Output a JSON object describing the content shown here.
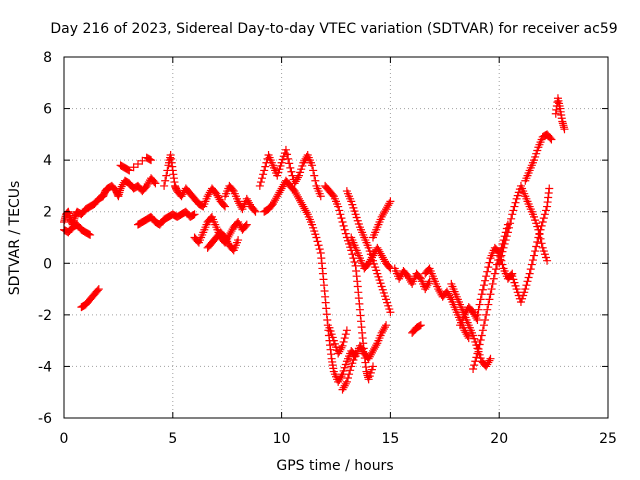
{
  "chart_data": {
    "type": "scatter",
    "title": "Day 216 of 2023, Sidereal Day-to-day VTEC variation (SDTVAR) for receiver ac59",
    "xlabel": "GPS time / hours",
    "ylabel": "SDTVAR / TECUs",
    "xlim": [
      0,
      25
    ],
    "ylim": [
      -6,
      8
    ],
    "xticks": [
      "0",
      "5",
      "10",
      "15",
      "20",
      "25"
    ],
    "yticks": [
      "-6",
      "-4",
      "-2",
      "0",
      "2",
      "4",
      "6",
      "8"
    ],
    "grid": true,
    "marker": "plus",
    "color": "#ff0000",
    "series": [
      {
        "points": [
          [
            0.0,
            1.6
          ],
          [
            0.1,
            1.9
          ],
          [
            0.2,
            2.0
          ],
          [
            0.3,
            1.7
          ],
          [
            0.4,
            1.5
          ],
          [
            0.5,
            1.8
          ],
          [
            0.6,
            2.0
          ],
          [
            0.8,
            1.9
          ],
          [
            1.0,
            2.1
          ],
          [
            1.2,
            2.2
          ],
          [
            1.4,
            2.3
          ],
          [
            1.6,
            2.5
          ],
          [
            1.8,
            2.6
          ],
          [
            1.9,
            2.8
          ],
          [
            2.0,
            2.9
          ],
          [
            2.2,
            3.0
          ],
          [
            2.4,
            2.8
          ],
          [
            2.5,
            2.6
          ],
          [
            2.6,
            2.9
          ],
          [
            2.8,
            3.2
          ],
          [
            3.0,
            3.1
          ],
          [
            3.2,
            2.9
          ],
          [
            3.4,
            3.0
          ],
          [
            3.6,
            2.8
          ],
          [
            3.8,
            3.0
          ],
          [
            4.0,
            3.3
          ],
          [
            4.2,
            3.1
          ]
        ]
      },
      {
        "points": [
          [
            0.0,
            1.3
          ],
          [
            0.2,
            1.2
          ],
          [
            0.4,
            1.4
          ],
          [
            0.6,
            1.5
          ],
          [
            0.8,
            1.3
          ],
          [
            1.0,
            1.2
          ],
          [
            1.2,
            1.1
          ]
        ]
      },
      {
        "points": [
          [
            0.8,
            -1.7
          ],
          [
            1.0,
            -1.6
          ],
          [
            1.2,
            -1.4
          ],
          [
            1.4,
            -1.2
          ],
          [
            1.6,
            -1.0
          ]
        ]
      },
      {
        "points": [
          [
            2.6,
            3.8
          ],
          [
            2.8,
            3.7
          ],
          [
            3.0,
            3.6
          ],
          [
            3.8,
            4.1
          ],
          [
            4.0,
            4.0
          ]
        ]
      },
      {
        "points": [
          [
            3.4,
            1.5
          ],
          [
            3.6,
            1.6
          ],
          [
            3.8,
            1.7
          ],
          [
            4.0,
            1.8
          ],
          [
            4.2,
            1.6
          ],
          [
            4.4,
            1.5
          ],
          [
            4.6,
            1.7
          ],
          [
            4.8,
            1.8
          ],
          [
            5.0,
            1.9
          ],
          [
            5.2,
            1.8
          ],
          [
            5.4,
            1.9
          ],
          [
            5.6,
            2.0
          ],
          [
            5.8,
            1.8
          ],
          [
            6.0,
            1.9
          ]
        ]
      },
      {
        "points": [
          [
            4.6,
            3.0
          ],
          [
            4.8,
            3.8
          ],
          [
            4.9,
            4.2
          ],
          [
            5.0,
            3.6
          ],
          [
            5.1,
            3.0
          ],
          [
            5.2,
            2.8
          ],
          [
            5.4,
            2.6
          ],
          [
            5.6,
            2.9
          ],
          [
            5.8,
            2.7
          ],
          [
            6.0,
            2.5
          ],
          [
            6.2,
            2.3
          ],
          [
            6.4,
            2.2
          ],
          [
            6.6,
            2.6
          ],
          [
            6.8,
            2.9
          ],
          [
            7.0,
            2.7
          ],
          [
            7.2,
            2.4
          ],
          [
            7.4,
            2.2
          ]
        ]
      },
      {
        "points": [
          [
            6.0,
            1.0
          ],
          [
            6.2,
            0.8
          ],
          [
            6.4,
            1.2
          ],
          [
            6.6,
            1.6
          ],
          [
            6.8,
            1.8
          ],
          [
            7.0,
            1.4
          ],
          [
            7.2,
            1.0
          ],
          [
            7.4,
            0.8
          ],
          [
            7.6,
            1.1
          ],
          [
            7.8,
            1.4
          ],
          [
            8.0,
            1.6
          ],
          [
            8.2,
            1.3
          ],
          [
            8.4,
            1.5
          ]
        ]
      },
      {
        "points": [
          [
            6.6,
            0.6
          ],
          [
            6.8,
            0.8
          ],
          [
            7.0,
            1.0
          ],
          [
            7.2,
            1.2
          ],
          [
            7.4,
            1.0
          ],
          [
            7.6,
            0.7
          ],
          [
            7.8,
            0.5
          ],
          [
            8.0,
            0.9
          ]
        ]
      },
      {
        "points": [
          [
            7.4,
            2.6
          ],
          [
            7.6,
            3.0
          ],
          [
            7.8,
            2.8
          ],
          [
            8.0,
            2.4
          ],
          [
            8.2,
            2.1
          ],
          [
            8.4,
            2.5
          ],
          [
            8.6,
            2.2
          ],
          [
            8.8,
            2.0
          ]
        ]
      },
      {
        "points": [
          [
            9.0,
            3.0
          ],
          [
            9.2,
            3.6
          ],
          [
            9.4,
            4.2
          ],
          [
            9.6,
            3.8
          ],
          [
            9.8,
            3.4
          ],
          [
            10.0,
            3.9
          ],
          [
            10.2,
            4.4
          ],
          [
            10.4,
            3.7
          ],
          [
            10.6,
            3.1
          ],
          [
            10.8,
            3.4
          ],
          [
            11.0,
            3.9
          ],
          [
            11.2,
            4.2
          ],
          [
            11.4,
            3.8
          ],
          [
            11.6,
            3.0
          ],
          [
            11.8,
            2.6
          ]
        ]
      },
      {
        "points": [
          [
            9.2,
            2.0
          ],
          [
            9.4,
            2.1
          ],
          [
            9.6,
            2.3
          ],
          [
            9.8,
            2.6
          ],
          [
            10.0,
            2.9
          ],
          [
            10.2,
            3.2
          ],
          [
            10.4,
            3.0
          ],
          [
            10.6,
            2.8
          ],
          [
            10.8,
            2.5
          ],
          [
            11.0,
            2.2
          ],
          [
            11.2,
            1.9
          ],
          [
            11.4,
            1.5
          ],
          [
            11.6,
            1.0
          ],
          [
            11.8,
            0.4
          ],
          [
            11.9,
            -0.4
          ],
          [
            12.0,
            -1.3
          ],
          [
            12.1,
            -2.2
          ],
          [
            12.2,
            -3.0
          ],
          [
            12.3,
            -3.7
          ],
          [
            12.4,
            -4.2
          ],
          [
            12.6,
            -4.6
          ],
          [
            12.8,
            -4.3
          ],
          [
            13.0,
            -3.8
          ],
          [
            13.2,
            -3.4
          ],
          [
            13.4,
            -3.6
          ],
          [
            13.6,
            -3.2
          ],
          [
            13.8,
            -3.5
          ],
          [
            14.0,
            -3.7
          ],
          [
            14.2,
            -3.4
          ],
          [
            14.4,
            -3.1
          ],
          [
            14.6,
            -2.7
          ],
          [
            14.8,
            -2.4
          ]
        ]
      },
      {
        "points": [
          [
            12.0,
            3.0
          ],
          [
            12.2,
            2.8
          ],
          [
            12.4,
            2.6
          ],
          [
            12.6,
            2.2
          ],
          [
            12.8,
            1.6
          ],
          [
            13.0,
            1.0
          ],
          [
            13.2,
            0.5
          ],
          [
            13.4,
            -0.1
          ],
          [
            13.5,
            -0.9
          ],
          [
            13.6,
            -1.8
          ],
          [
            13.7,
            -2.7
          ],
          [
            13.8,
            -3.5
          ],
          [
            13.9,
            -4.2
          ],
          [
            14.0,
            -4.5
          ],
          [
            14.2,
            -4.0
          ]
        ]
      },
      {
        "points": [
          [
            12.2,
            -2.5
          ],
          [
            12.4,
            -3.0
          ],
          [
            12.6,
            -3.5
          ],
          [
            12.8,
            -3.2
          ],
          [
            13.0,
            -2.6
          ]
        ]
      },
      {
        "points": [
          [
            12.8,
            -4.9
          ],
          [
            13.0,
            -4.6
          ],
          [
            13.2,
            -4.0
          ],
          [
            13.4,
            -3.5
          ]
        ]
      },
      {
        "points": [
          [
            13.2,
            1.0
          ],
          [
            13.4,
            0.6
          ],
          [
            13.6,
            0.2
          ],
          [
            13.8,
            -0.2
          ],
          [
            14.0,
            0.0
          ],
          [
            14.2,
            0.3
          ],
          [
            14.4,
            0.6
          ],
          [
            14.6,
            0.3
          ],
          [
            14.8,
            0.0
          ],
          [
            15.0,
            -0.2
          ]
        ]
      },
      {
        "points": [
          [
            13.0,
            2.8
          ],
          [
            13.2,
            2.4
          ],
          [
            13.4,
            1.9
          ],
          [
            13.6,
            1.4
          ],
          [
            13.8,
            1.0
          ],
          [
            14.0,
            0.6
          ],
          [
            14.2,
            0.1
          ],
          [
            14.4,
            -0.4
          ],
          [
            14.6,
            -0.9
          ],
          [
            14.8,
            -1.4
          ],
          [
            15.0,
            -1.9
          ]
        ]
      },
      {
        "points": [
          [
            14.2,
            1.0
          ],
          [
            14.4,
            1.4
          ],
          [
            14.6,
            1.8
          ],
          [
            14.8,
            2.1
          ],
          [
            15.0,
            2.4
          ]
        ]
      },
      {
        "points": [
          [
            15.2,
            -0.2
          ],
          [
            15.4,
            -0.6
          ],
          [
            15.6,
            -0.3
          ],
          [
            15.8,
            -0.5
          ],
          [
            16.0,
            -0.8
          ],
          [
            16.2,
            -0.4
          ],
          [
            16.4,
            -0.6
          ],
          [
            16.6,
            -1.0
          ],
          [
            16.8,
            -0.7
          ]
        ]
      },
      {
        "points": [
          [
            16.0,
            -2.7
          ],
          [
            16.2,
            -2.5
          ],
          [
            16.4,
            -2.4
          ]
        ]
      },
      {
        "points": [
          [
            16.6,
            -0.4
          ],
          [
            16.8,
            -0.2
          ],
          [
            17.0,
            -0.6
          ],
          [
            17.2,
            -1.0
          ],
          [
            17.4,
            -1.3
          ],
          [
            17.6,
            -1.1
          ],
          [
            17.8,
            -1.4
          ],
          [
            18.0,
            -1.8
          ],
          [
            18.2,
            -2.2
          ],
          [
            18.4,
            -2.6
          ],
          [
            18.6,
            -2.9
          ]
        ]
      },
      {
        "points": [
          [
            17.8,
            -0.8
          ],
          [
            18.0,
            -1.2
          ],
          [
            18.2,
            -1.6
          ],
          [
            18.4,
            -2.0
          ],
          [
            18.6,
            -2.4
          ],
          [
            18.8,
            -2.8
          ],
          [
            19.0,
            -3.3
          ],
          [
            19.2,
            -3.8
          ],
          [
            19.4,
            -4.0
          ],
          [
            19.6,
            -3.7
          ]
        ]
      },
      {
        "points": [
          [
            18.8,
            -4.1
          ],
          [
            19.0,
            -3.5
          ],
          [
            19.2,
            -2.8
          ],
          [
            19.4,
            -2.0
          ],
          [
            19.6,
            -1.2
          ],
          [
            19.8,
            -0.4
          ],
          [
            20.0,
            0.3
          ],
          [
            20.2,
            0.9
          ],
          [
            20.4,
            1.5
          ]
        ]
      },
      {
        "points": [
          [
            19.0,
            -2.0
          ],
          [
            19.2,
            -1.2
          ],
          [
            19.4,
            -0.5
          ],
          [
            19.6,
            0.2
          ],
          [
            19.8,
            0.6
          ],
          [
            20.0,
            0.4
          ],
          [
            20.2,
            -0.2
          ],
          [
            20.4,
            -0.6
          ],
          [
            20.6,
            -0.4
          ]
        ]
      },
      {
        "points": [
          [
            18.2,
            -2.4
          ],
          [
            18.4,
            -2.0
          ],
          [
            18.6,
            -1.7
          ],
          [
            18.8,
            -1.9
          ],
          [
            19.0,
            -2.2
          ]
        ]
      },
      {
        "points": [
          [
            20.0,
            0.0
          ],
          [
            20.2,
            0.6
          ],
          [
            20.4,
            1.2
          ],
          [
            20.6,
            1.9
          ],
          [
            20.8,
            2.5
          ],
          [
            21.0,
            3.0
          ],
          [
            21.2,
            2.6
          ],
          [
            21.4,
            2.2
          ],
          [
            21.6,
            1.8
          ],
          [
            21.8,
            1.3
          ],
          [
            22.0,
            0.6
          ],
          [
            22.2,
            0.1
          ]
        ]
      },
      {
        "points": [
          [
            20.6,
            -0.5
          ],
          [
            20.8,
            -1.0
          ],
          [
            21.0,
            -1.5
          ],
          [
            21.2,
            -1.0
          ],
          [
            21.4,
            -0.4
          ],
          [
            21.6,
            0.3
          ],
          [
            21.8,
            1.0
          ],
          [
            22.0,
            1.6
          ],
          [
            22.2,
            2.2
          ],
          [
            22.3,
            2.9
          ]
        ]
      },
      {
        "points": [
          [
            21.2,
            3.2
          ],
          [
            21.4,
            3.6
          ],
          [
            21.6,
            4.0
          ],
          [
            21.8,
            4.5
          ],
          [
            22.0,
            4.9
          ],
          [
            22.2,
            5.0
          ],
          [
            22.4,
            4.8
          ]
        ]
      },
      {
        "points": [
          [
            22.6,
            5.8
          ],
          [
            22.7,
            6.4
          ],
          [
            22.8,
            6.0
          ],
          [
            22.9,
            5.5
          ],
          [
            23.0,
            5.2
          ]
        ]
      }
    ]
  }
}
